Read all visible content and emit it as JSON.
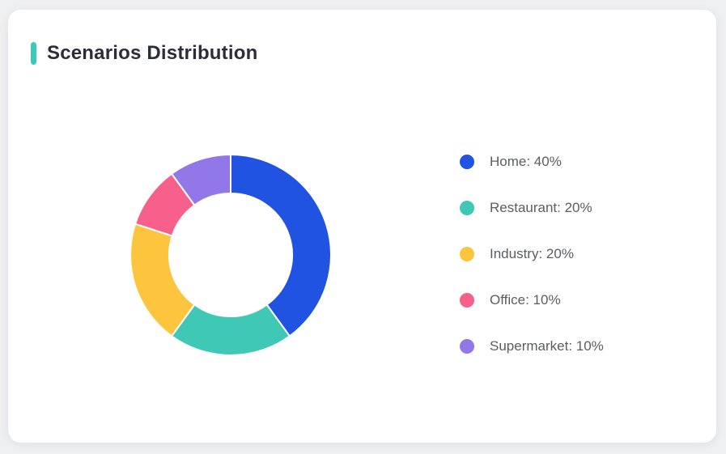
{
  "page": {
    "background": "#eef0f2"
  },
  "card": {
    "title": "Scenarios Distribution",
    "accent_color": "#3cc9b8",
    "background": "#ffffff"
  },
  "chart_data": {
    "type": "pie",
    "subtype": "donut",
    "title": "Scenarios Distribution",
    "categories": [
      "Home",
      "Restaurant",
      "Industry",
      "Office",
      "Supermarket"
    ],
    "values": [
      40,
      20,
      20,
      10,
      10
    ],
    "unit": "%",
    "colors": [
      "#2153e3",
      "#40c8b6",
      "#fdc53e",
      "#f7608a",
      "#9177e8"
    ],
    "start_angle_deg": 0,
    "direction": "clockwise",
    "inner_radius_ratio": 0.61,
    "gap_color": "#ffffff",
    "legend_position": "right",
    "legend_labels": [
      "Home: 40%",
      "Restaurant: 20%",
      "Industry: 20%",
      "Office: 10%",
      "Supermarket: 10%"
    ]
  }
}
